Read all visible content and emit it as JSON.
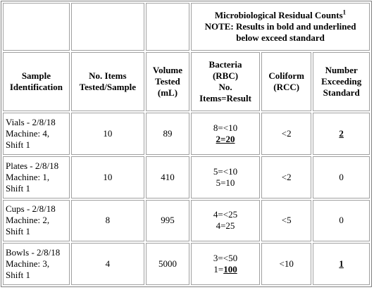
{
  "header": {
    "title": "Microbiological Residual Counts",
    "footnote": "1",
    "note": [
      "NOTE: Results in bold and underlined",
      "below exceed standard"
    ]
  },
  "columns": [
    [
      "Sample",
      "Identification"
    ],
    [
      "No. Items",
      "Tested/Sample"
    ],
    [
      "Volume",
      "Tested",
      "(mL)"
    ],
    [
      "Bacteria",
      "(RBC)",
      "No.",
      "Items=Result"
    ],
    [
      "Coliform",
      "(RCC)"
    ],
    [
      "Number",
      "Exceeding",
      "Standard"
    ]
  ],
  "rows": [
    {
      "sample": [
        "Vials - 2/8/18",
        "Machine: 4,",
        "Shift 1"
      ],
      "items": "10",
      "volume": "89",
      "bacteria": [
        [
          "8=<10"
        ],
        [
          {
            "text": "2=20",
            "exceeds": true
          }
        ]
      ],
      "coliform": "<2",
      "exceeding": {
        "text": "2",
        "exceeds": true
      }
    },
    {
      "sample": [
        "Plates - 2/8/18",
        "Machine: 1,",
        "Shift 1"
      ],
      "items": "10",
      "volume": "410",
      "bacteria": [
        [
          "5=<10"
        ],
        [
          "5=10"
        ]
      ],
      "coliform": "<2",
      "exceeding": {
        "text": "0",
        "exceeds": false
      }
    },
    {
      "sample": [
        "Cups - 2/8/18",
        "Machine: 2,",
        "Shift 1"
      ],
      "items": "8",
      "volume": "995",
      "bacteria": [
        [
          "4=<25"
        ],
        [
          "4=25"
        ]
      ],
      "coliform": "<5",
      "exceeding": {
        "text": "0",
        "exceeds": false
      }
    },
    {
      "sample": [
        "Bowls - 2/8/18",
        "Machine: 3,",
        "Shift 1"
      ],
      "items": "4",
      "volume": "5000",
      "bacteria": [
        [
          "3=<50"
        ],
        [
          "1=",
          {
            "text": "100",
            "exceeds": true
          }
        ]
      ],
      "coliform": "<10",
      "exceeding": {
        "text": "1",
        "exceeds": true
      }
    }
  ]
}
